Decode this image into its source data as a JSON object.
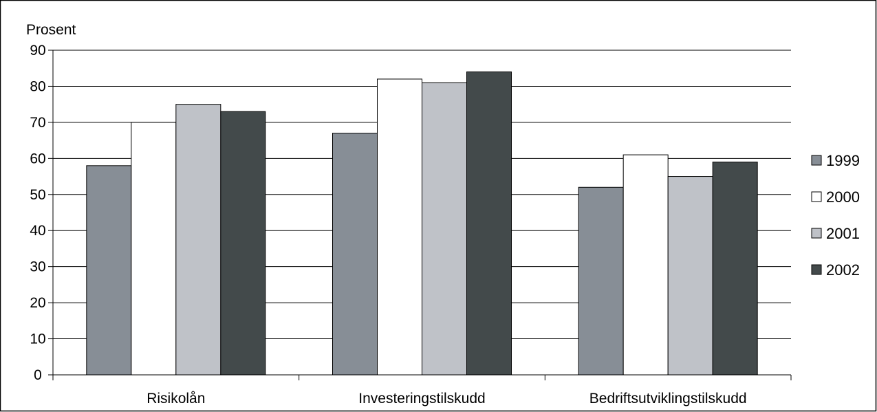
{
  "chart_data": {
    "type": "bar",
    "title": "",
    "ylabel": "Prosent",
    "xlabel": "",
    "ylim": [
      0,
      90
    ],
    "yticks": [
      0,
      10,
      20,
      30,
      40,
      50,
      60,
      70,
      80,
      90
    ],
    "grid": true,
    "legend_position": "right",
    "categories": [
      "Risikolån",
      "Investeringstilskudd",
      "Bedriftsutviklingstilskudd"
    ],
    "series": [
      {
        "name": "1999",
        "color": "#878e96",
        "values": [
          58,
          67,
          52
        ]
      },
      {
        "name": "2000",
        "color": "#ffffff",
        "values": [
          70,
          82,
          61
        ]
      },
      {
        "name": "2001",
        "color": "#bfc2c8",
        "values": [
          75,
          81,
          55
        ]
      },
      {
        "name": "2002",
        "color": "#434a4b",
        "values": [
          73,
          84,
          59
        ]
      }
    ]
  }
}
